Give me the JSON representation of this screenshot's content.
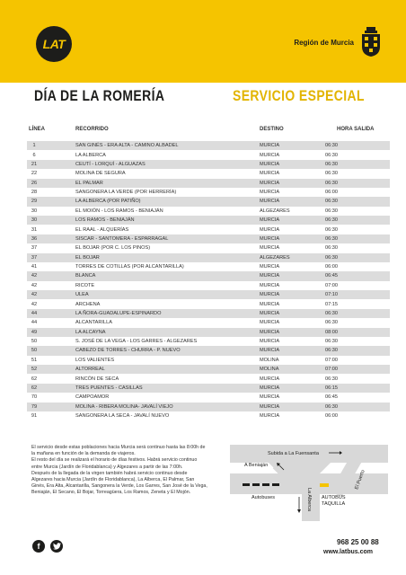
{
  "header": {
    "logo_text": "LAT",
    "region_name": "Región de Murcia"
  },
  "titles": {
    "left": "DÍA DE LA ROMERÍA",
    "right": "SERVICIO ESPECIAL"
  },
  "table": {
    "headers": [
      "LÍNEA",
      "RECORRIDO",
      "DESTINO",
      "HORA SALIDA"
    ],
    "rows": [
      [
        "1",
        "San Ginés - Era Alta - Camino Albadel",
        "Murcia",
        "06:30"
      ],
      [
        "6",
        "La Alberca",
        "Murcia",
        "06:30"
      ],
      [
        "21",
        "Ceutí - Lorquí - Alguazas",
        "Murcia",
        "06:30"
      ],
      [
        "22",
        "Molina de Segura",
        "Murcia",
        "06:30"
      ],
      [
        "26",
        "El Palmar",
        "Murcia",
        "06:30"
      ],
      [
        "28",
        "Sangonera la Verde (por Herrería)",
        "Murcia",
        "06:00"
      ],
      [
        "29",
        "La Alberca (por Patiño)",
        "Murcia",
        "06:30"
      ],
      [
        "30",
        "El Moión - Los Ramos - Beniaján",
        "Algezares",
        "06:30"
      ],
      [
        "30",
        "Los Ramos - Beniaján",
        "Murcia",
        "06:30"
      ],
      [
        "31",
        "El Raal - Alquerías",
        "Murcia",
        "06:30"
      ],
      [
        "36",
        "Siscar - Santomera - Esparragal",
        "Murcia",
        "06:30"
      ],
      [
        "37",
        "El Bojar (por C. Los Pinos)",
        "Murcia",
        "06:30"
      ],
      [
        "37",
        "El Bojar",
        "Algezares",
        "06:30"
      ],
      [
        "41",
        "Torres de Cotillas (por Alcantarilla)",
        "Murcia",
        "06:00"
      ],
      [
        "42",
        "Blanca",
        "Murcia",
        "06:45"
      ],
      [
        "42",
        "Ricote",
        "Murcia",
        "07:00"
      ],
      [
        "42",
        "Ulea",
        "Murcia",
        "07:10"
      ],
      [
        "42",
        "Archena",
        "Murcia",
        "07:15"
      ],
      [
        "44",
        "La Ñora-Guadalupe-Espinardo",
        "Murcia",
        "06:30"
      ],
      [
        "44",
        "Alcantarilla",
        "Murcia",
        "06:30"
      ],
      [
        "49",
        "La Alcayna",
        "Murcia",
        "08:00"
      ],
      [
        "50",
        "S. José de la Vega - Los Garres - Algezares",
        "Murcia",
        "06:30"
      ],
      [
        "50",
        "Cabezo de Torres - Churra - P. Nuevo",
        "Murcia",
        "06:30"
      ],
      [
        "51",
        "Los Valientes",
        "Molina",
        "07:00"
      ],
      [
        "52",
        "Altorreal",
        "Molina",
        "07:00"
      ],
      [
        "62",
        "Rincón de Seca",
        "Murcia",
        "06:30"
      ],
      [
        "62",
        "Tres Puentes - Casillas",
        "Murcia",
        "06:15"
      ],
      [
        "70",
        "Campoamor",
        "Murcia",
        "06:45"
      ],
      [
        "79",
        "Molina - Ribera Molina- Javalí Viejo",
        "Murcia",
        "06:30"
      ],
      [
        "91",
        "Sangonera la Seca - Javalí Nuevo",
        "Murcia",
        "06:00"
      ]
    ]
  },
  "info": [
    "El servicio desde estas poblaciones hacia Murcia será continuo hasta las 8:00h de la mañana en función de la demanda de viajeros.",
    "El resto del día se realizará el horario de días festivos. Habrá servicio continuo entre Murcia (Jardín de Floridablanca) y Algezares a partir de las 7:00h.",
    "Después de la llegada de la virgen también habrá servicio continuo desde Algezares hacia Murcia (Jardín de Floridablanca), La Alberca, El Palmar, San Ginés, Era Alta, Alcantarilla, Sangonera la Verde, Los Garres, San José de la Vega, Beniaján, El Secano, El Bojar, Torreagüera, Los Ramos, Zeneta y El Mojón."
  ],
  "map": {
    "subida": "Subida a La Fuensanta",
    "a_beniajan": "A Beniaján",
    "autobuses": "Autobuses",
    "la_alberca": "La Alberca",
    "el_puerto": "El Puerto",
    "autobus_taquilla_1": "AUTOBUS",
    "autobus_taquilla_2": "TAQUILLA"
  },
  "footer": {
    "facebook": "f",
    "phone": "968 25 00 88",
    "web": "www.latbus.com"
  }
}
